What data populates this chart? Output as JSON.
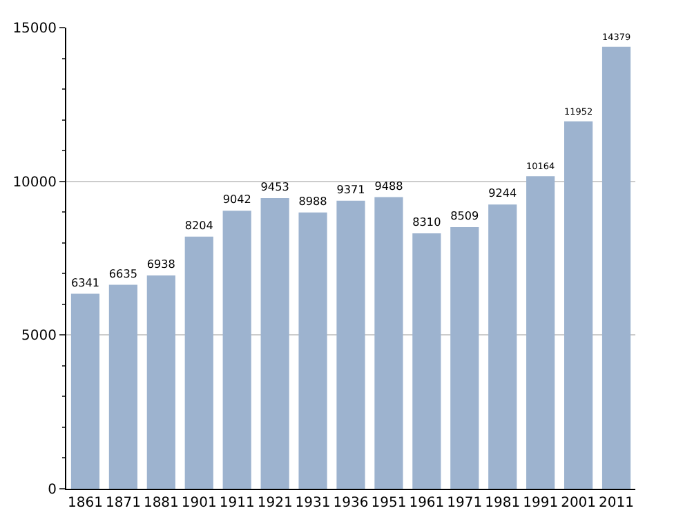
{
  "chart_data": {
    "type": "bar",
    "categories": [
      "1861",
      "1871",
      "1881",
      "1901",
      "1911",
      "1921",
      "1931",
      "1936",
      "1951",
      "1961",
      "1971",
      "1981",
      "1991",
      "2001",
      "2011"
    ],
    "values": [
      6341,
      6635,
      6938,
      8204,
      9042,
      9453,
      8988,
      9371,
      9488,
      8310,
      8509,
      9244,
      10164,
      11952,
      14379
    ],
    "color": "#9db3cf",
    "ylim": [
      0,
      15000
    ],
    "yticks": [
      0,
      5000,
      10000,
      15000
    ],
    "grid": "y",
    "data_labels": true
  }
}
